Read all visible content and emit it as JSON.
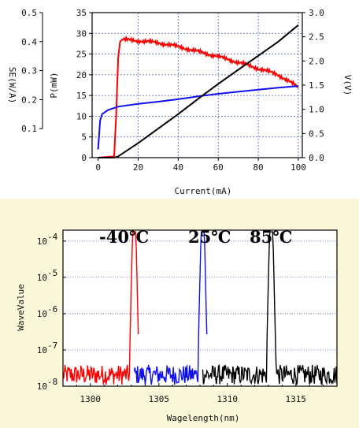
{
  "colors": {
    "red": "#ff0000",
    "blue": "#1010ee",
    "black": "#000000",
    "grid": "#4b5ec9",
    "bottom_bg": "#fbf7d9"
  },
  "chart_data": [
    {
      "type": "line",
      "xlabel": "Current(mA)",
      "ylabel_left_outer": "SE(W/A)",
      "ylabel_left_inner": "P(mW)",
      "ylabel_right": "V(V)",
      "xlim": [
        -3,
        102
      ],
      "xticks": [
        0,
        20,
        40,
        60,
        80,
        100
      ],
      "xtick_labels": [
        "0",
        "20",
        "40",
        "60",
        "80",
        "100"
      ],
      "ylim_power": [
        0,
        35
      ],
      "yticks_power": [
        0,
        5,
        10,
        15,
        20,
        25,
        30,
        35
      ],
      "ytick_labels_power": [
        "0",
        "5",
        "10",
        "15",
        "20",
        "25",
        "30",
        "35"
      ],
      "ylim_se": [
        0,
        0.5
      ],
      "yticks_se": [
        0.1,
        0.2,
        0.3,
        0.4,
        0.5
      ],
      "ytick_labels_se": [
        "0.1",
        "0.2",
        "0.3",
        "0.4",
        "0.5"
      ],
      "ylim_voltage": [
        0,
        3.0
      ],
      "yticks_voltage": [
        0,
        0.5,
        1.0,
        1.5,
        2.0,
        2.5,
        3.0
      ],
      "ytick_labels_voltage": [
        "0.0",
        "0.5",
        "1.0",
        "1.5",
        "2.0",
        "2.5",
        "3.0"
      ],
      "grid": true,
      "series": [
        {
          "axis": "power",
          "color": "red",
          "x": [
            0,
            8,
            9,
            10,
            11,
            12,
            15,
            20,
            25,
            30,
            35,
            40,
            45,
            50,
            55,
            60,
            65,
            70,
            75,
            80,
            85,
            90,
            95,
            100
          ],
          "y": [
            0,
            0.3,
            10,
            24,
            28,
            28.5,
            28.4,
            28.2,
            28,
            27.7,
            27.3,
            26.8,
            26.2,
            25.6,
            25,
            24.4,
            23.7,
            23,
            22.3,
            21.5,
            20.8,
            20,
            18.5,
            17
          ]
        },
        {
          "axis": "power",
          "color": "blue",
          "x": [
            0,
            1,
            2,
            5,
            10,
            20,
            30,
            40,
            50,
            60,
            70,
            80,
            90,
            100
          ],
          "y": [
            2,
            9,
            10.5,
            11.5,
            12.3,
            13,
            13.5,
            14.1,
            14.8,
            15.4,
            15.9,
            16.4,
            16.9,
            17.3
          ]
        },
        {
          "axis": "power",
          "color": "black",
          "x": [
            0,
            8,
            10,
            20,
            30,
            40,
            50,
            60,
            70,
            80,
            90,
            100
          ],
          "y": [
            0,
            0,
            0.3,
            3.5,
            7,
            10.5,
            14.2,
            17.8,
            21.2,
            24.6,
            28,
            32
          ]
        }
      ]
    },
    {
      "type": "line",
      "xlabel": "Wagelength(nm)",
      "ylabel": "WaveValue",
      "xlim": [
        1298,
        1318
      ],
      "xticks": [
        1300,
        1305,
        1310,
        1315
      ],
      "xtick_labels": [
        "1300",
        "1305",
        "1310",
        "1315"
      ],
      "ylog": true,
      "ylim": [
        1e-08,
        0.0002
      ],
      "ytick_bases": [
        "10",
        "10",
        "10",
        "10",
        "10"
      ],
      "ytick_exponents": [
        "-4",
        "-5",
        "-6",
        "-7",
        "-8"
      ],
      "grid": "dotted horizontal",
      "annotations": [
        "-40℃",
        "25℃",
        "85℃"
      ],
      "series": [
        {
          "color": "red",
          "peak_x": 1303.2,
          "peak_y": 0.00018,
          "noise_x_range": [
            1298,
            1303.5
          ],
          "noise_level": 2.2e-08
        },
        {
          "color": "blue",
          "peak_x": 1308.2,
          "peak_y": 0.00018,
          "noise_x_range": [
            1303.2,
            1308.5
          ],
          "noise_level": 2.2e-08
        },
        {
          "color": "black",
          "peak_x": 1313.2,
          "peak_y": 0.00018,
          "noise_x_range": [
            1308.2,
            1318
          ],
          "noise_level": 2.2e-08
        }
      ]
    }
  ]
}
